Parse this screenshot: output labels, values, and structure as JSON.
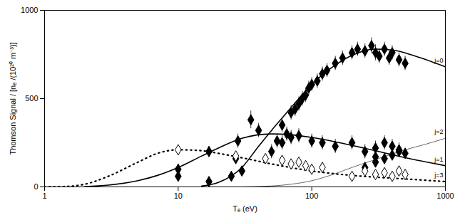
{
  "chart_data": {
    "type": "scatter",
    "x_label": "Tₑ (eV)",
    "y_label": "Thomson Signal / [nₑ /(10²⁰ m⁻³)]",
    "log": "x",
    "grid": false,
    "xlim": [
      1,
      1000
    ],
    "xticks": [
      1,
      10,
      100,
      1000
    ],
    "ylim": [
      0,
      1000
    ],
    "yticks": [
      0,
      500,
      1000
    ],
    "series": [
      {
        "name": "j=0",
        "type": "line",
        "line_style": "solid",
        "color": "#000000",
        "x": [
          15,
          20,
          30,
          40,
          50,
          60,
          80,
          100,
          150,
          200,
          300,
          400,
          600,
          1000
        ],
        "values": [
          5,
          25,
          110,
          230,
          320,
          390,
          500,
          580,
          690,
          745,
          780,
          775,
          740,
          680
        ]
      },
      {
        "name": "j=1",
        "type": "line",
        "line_style": "solid",
        "color": "#000000",
        "x": [
          2,
          3,
          5,
          7,
          10,
          15,
          20,
          30,
          50,
          70,
          100,
          150,
          200,
          300,
          500,
          1000
        ],
        "values": [
          2,
          10,
          35,
          65,
          110,
          175,
          220,
          275,
          300,
          295,
          280,
          255,
          235,
          205,
          165,
          120
        ]
      },
      {
        "name": "j=2",
        "type": "line",
        "line_style": "solid",
        "color": "#666666",
        "x": [
          30,
          50,
          70,
          100,
          150,
          200,
          300,
          500,
          700,
          1000
        ],
        "values": [
          0,
          5,
          15,
          35,
          75,
          110,
          155,
          210,
          240,
          275
        ]
      },
      {
        "name": "j=3",
        "type": "line",
        "line_style": "dotted",
        "color": "#000000",
        "x": [
          1,
          1.5,
          2,
          3,
          5,
          7,
          10,
          15,
          20,
          30,
          50,
          100,
          200,
          300,
          500,
          1000
        ],
        "values": [
          0,
          3,
          15,
          60,
          140,
          190,
          210,
          205,
          190,
          165,
          130,
          90,
          65,
          55,
          45,
          30
        ]
      },
      {
        "type": "scatter",
        "marker": "diamond",
        "color": "#000000",
        "x": [
          17,
          25,
          30,
          50,
          55,
          60,
          65,
          70,
          75,
          80,
          85,
          90,
          95,
          100,
          110,
          120,
          130,
          150,
          170,
          200,
          220,
          250,
          280,
          300,
          320,
          350,
          380,
          400,
          450,
          500,
          10,
          10,
          17,
          27,
          28,
          35,
          40,
          60,
          70,
          80,
          100,
          120,
          150,
          200,
          250,
          300,
          350,
          400,
          450,
          250,
          300,
          300,
          350,
          400,
          450,
          500
        ],
        "values": [
          30,
          60,
          90,
          200,
          260,
          350,
          300,
          420,
          440,
          470,
          500,
          520,
          560,
          580,
          600,
          640,
          660,
          700,
          730,
          760,
          780,
          770,
          800,
          760,
          740,
          780,
          730,
          760,
          720,
          700,
          100,
          60,
          200,
          160,
          260,
          380,
          320,
          250,
          280,
          290,
          260,
          250,
          230,
          250,
          200,
          220,
          250,
          230,
          210,
          110,
          140,
          170,
          160,
          180,
          200,
          190
        ],
        "errors": [
          25,
          25,
          25,
          40,
          40,
          40,
          40,
          40,
          40,
          40,
          40,
          40,
          40,
          40,
          40,
          40,
          40,
          40,
          40,
          40,
          40,
          40,
          45,
          45,
          40,
          40,
          40,
          40,
          40,
          40,
          30,
          30,
          30,
          30,
          40,
          50,
          40,
          40,
          40,
          40,
          40,
          40,
          40,
          40,
          40,
          40,
          40,
          40,
          40,
          30,
          30,
          30,
          30,
          30,
          30,
          30
        ]
      },
      {
        "type": "scatter",
        "marker": "diamond-open",
        "color": "#000000",
        "x": [
          10,
          27,
          45,
          60,
          70,
          80,
          90,
          100,
          120,
          200,
          250,
          300,
          350,
          400,
          450,
          500
        ],
        "values": [
          210,
          175,
          160,
          150,
          130,
          140,
          120,
          100,
          110,
          60,
          90,
          70,
          80,
          60,
          90,
          70
        ]
      }
    ]
  }
}
